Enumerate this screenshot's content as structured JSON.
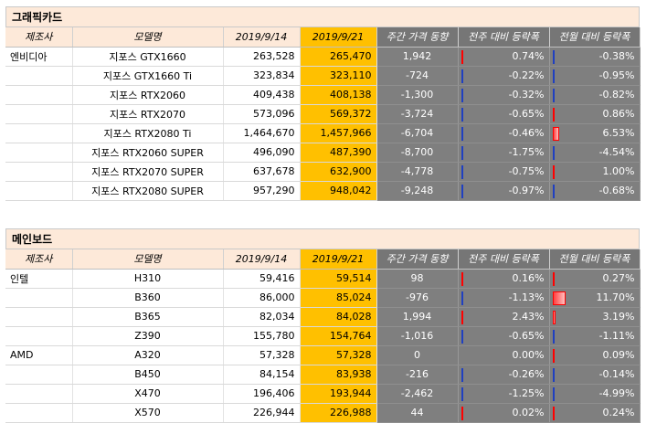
{
  "headers": {
    "maker": "제조사",
    "model": "모델명",
    "prev_date": "2019/9/14",
    "cur_date": "2019/9/21",
    "weekly_change": "주간 가격 동향",
    "wow_pct": "전주 대비 등락폭",
    "mom_pct": "전월 대비 등락폭"
  },
  "sections": [
    {
      "title": "그래픽카드",
      "rows": [
        {
          "maker": "엔비디아",
          "model": "지포스 GTX1660",
          "prev": "263,528",
          "cur": "265,470",
          "change": "1,942",
          "wow": "0.74%",
          "wow_v": 0.74,
          "mom": "-0.38%",
          "mom_v": -0.38
        },
        {
          "maker": "",
          "model": "지포스 GTX1660 Ti",
          "prev": "323,834",
          "cur": "323,110",
          "change": "-724",
          "wow": "-0.22%",
          "wow_v": -0.22,
          "mom": "-0.95%",
          "mom_v": -0.95
        },
        {
          "maker": "",
          "model": "지포스 RTX2060",
          "prev": "409,438",
          "cur": "408,138",
          "change": "-1,300",
          "wow": "-0.32%",
          "wow_v": -0.32,
          "mom": "-0.82%",
          "mom_v": -0.82
        },
        {
          "maker": "",
          "model": "지포스 RTX2070",
          "prev": "573,096",
          "cur": "569,372",
          "change": "-3,724",
          "wow": "-0.65%",
          "wow_v": -0.65,
          "mom": "0.86%",
          "mom_v": 0.86
        },
        {
          "maker": "",
          "model": "지포스 RTX2080 Ti",
          "prev": "1,464,670",
          "cur": "1,457,966",
          "change": "-6,704",
          "wow": "-0.46%",
          "wow_v": -0.46,
          "mom": "6.53%",
          "mom_v": 6.53
        },
        {
          "maker": "",
          "model": "지포스 RTX2060 SUPER",
          "prev": "496,090",
          "cur": "487,390",
          "change": "-8,700",
          "wow": "-1.75%",
          "wow_v": -1.75,
          "mom": "-4.54%",
          "mom_v": -4.54
        },
        {
          "maker": "",
          "model": "지포스 RTX2070 SUPER",
          "prev": "637,678",
          "cur": "632,900",
          "change": "-4,778",
          "wow": "-0.75%",
          "wow_v": -0.75,
          "mom": "1.00%",
          "mom_v": 1.0
        },
        {
          "maker": "",
          "model": "지포스 RTX2080 SUPER",
          "prev": "957,290",
          "cur": "948,042",
          "change": "-9,248",
          "wow": "-0.97%",
          "wow_v": -0.97,
          "mom": "-0.68%",
          "mom_v": -0.68
        }
      ]
    },
    {
      "title": "메인보드",
      "rows": [
        {
          "maker": "인텔",
          "model": "H310",
          "prev": "59,416",
          "cur": "59,514",
          "change": "98",
          "wow": "0.16%",
          "wow_v": 0.16,
          "mom": "0.27%",
          "mom_v": 0.27
        },
        {
          "maker": "",
          "model": "B360",
          "prev": "86,000",
          "cur": "85,024",
          "change": "-976",
          "wow": "-1.13%",
          "wow_v": -1.13,
          "mom": "11.70%",
          "mom_v": 11.7
        },
        {
          "maker": "",
          "model": "B365",
          "prev": "82,034",
          "cur": "84,028",
          "change": "1,994",
          "wow": "2.43%",
          "wow_v": 2.43,
          "mom": "3.19%",
          "mom_v": 3.19
        },
        {
          "maker": "",
          "model": "Z390",
          "prev": "155,780",
          "cur": "154,764",
          "change": "-1,016",
          "wow": "-0.65%",
          "wow_v": -0.65,
          "mom": "-1.11%",
          "mom_v": -1.11
        },
        {
          "maker": "AMD",
          "model": "A320",
          "prev": "57,328",
          "cur": "57,328",
          "change": "0",
          "wow": "0.00%",
          "wow_v": 0.0,
          "mom": "0.09%",
          "mom_v": 0.09
        },
        {
          "maker": "",
          "model": "B450",
          "prev": "84,154",
          "cur": "83,938",
          "change": "-216",
          "wow": "-0.26%",
          "wow_v": -0.26,
          "mom": "-0.14%",
          "mom_v": -0.14
        },
        {
          "maker": "",
          "model": "X470",
          "prev": "196,406",
          "cur": "193,944",
          "change": "-2,462",
          "wow": "-1.25%",
          "wow_v": -1.25,
          "mom": "-4.99%",
          "mom_v": -4.99
        },
        {
          "maker": "",
          "model": "X570",
          "prev": "226,944",
          "cur": "226,988",
          "change": "44",
          "wow": "0.02%",
          "wow_v": 0.02,
          "mom": "0.24%",
          "mom_v": 0.24
        }
      ]
    }
  ]
}
